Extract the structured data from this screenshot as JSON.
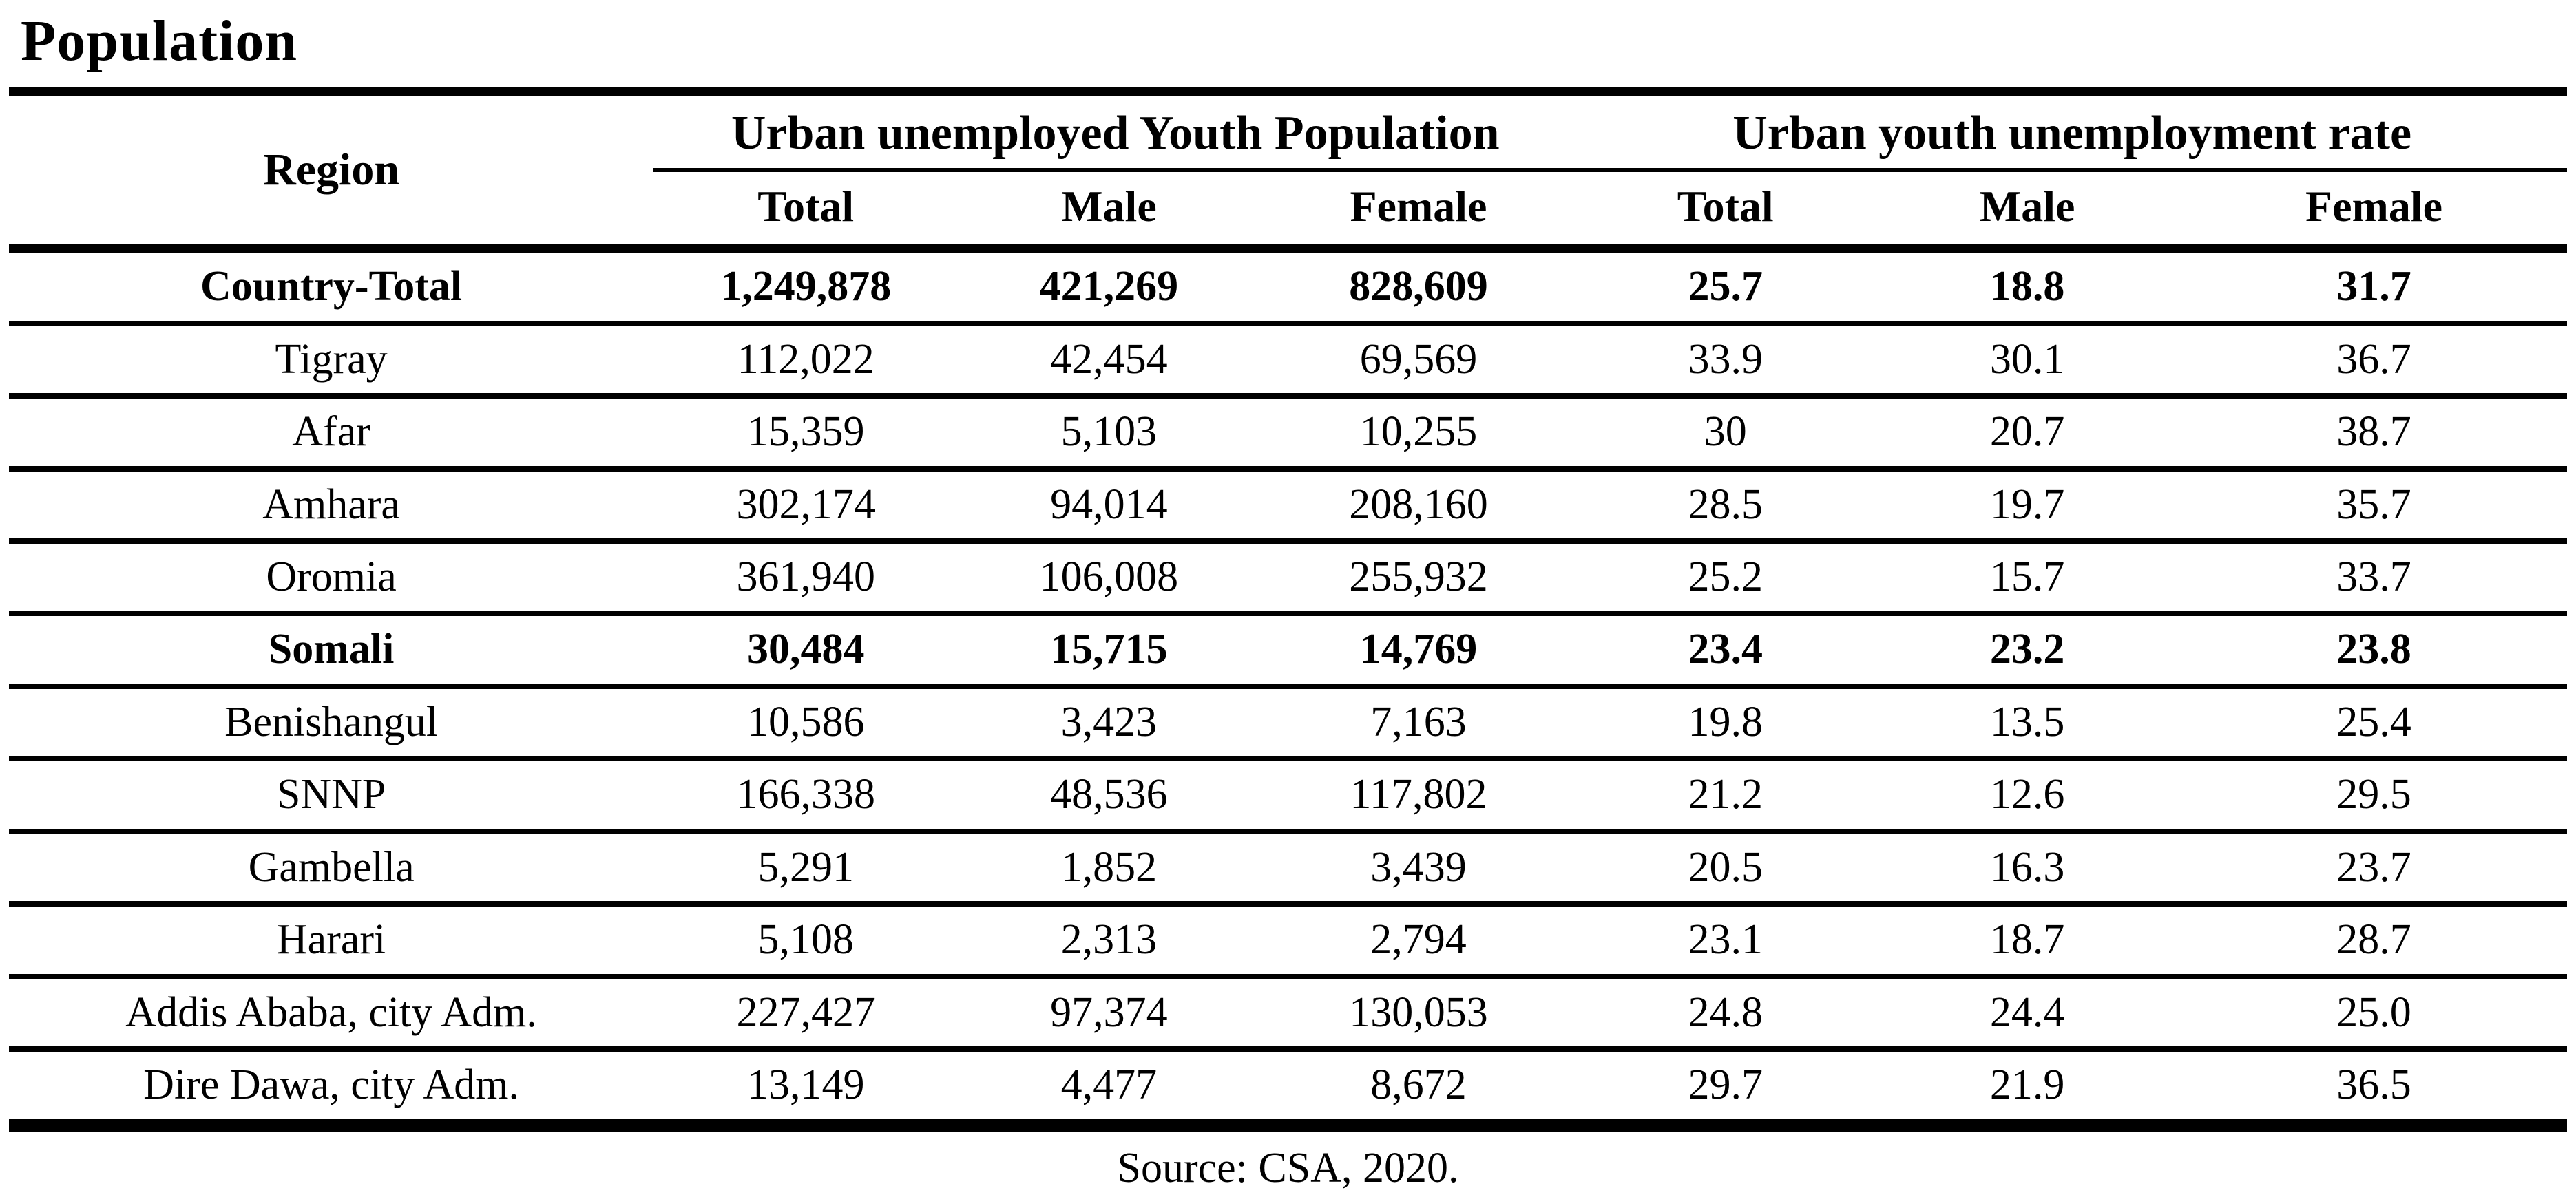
{
  "title": "Population",
  "colors": {
    "text": "#000000",
    "background": "#ffffff"
  },
  "table": {
    "region_header": "Region",
    "groups": [
      {
        "label": "Urban unemployed Youth Population",
        "columns": [
          "Total",
          "Male",
          "Female"
        ]
      },
      {
        "label": "Urban youth unemployment rate",
        "columns": [
          "Total",
          "Male",
          "Female"
        ]
      }
    ],
    "rows": [
      {
        "region": "Country-Total",
        "bold": true,
        "values": [
          "1,249,878",
          "421,269",
          "828,609",
          "25.7",
          "18.8",
          "31.7"
        ]
      },
      {
        "region": "Tigray",
        "bold": false,
        "values": [
          "112,022",
          "42,454",
          "69,569",
          "33.9",
          "30.1",
          "36.7"
        ]
      },
      {
        "region": "Afar",
        "bold": false,
        "values": [
          "15,359",
          "5,103",
          "10,255",
          "30",
          "20.7",
          "38.7"
        ]
      },
      {
        "region": "Amhara",
        "bold": false,
        "values": [
          "302,174",
          "94,014",
          "208,160",
          "28.5",
          "19.7",
          "35.7"
        ]
      },
      {
        "region": "Oromia",
        "bold": false,
        "values": [
          "361,940",
          "106,008",
          "255,932",
          "25.2",
          "15.7",
          "33.7"
        ]
      },
      {
        "region": "Somali",
        "bold": true,
        "values": [
          "30,484",
          "15,715",
          "14,769",
          "23.4",
          "23.2",
          "23.8"
        ]
      },
      {
        "region": "Benishangul",
        "bold": false,
        "values": [
          "10,586",
          "3,423",
          "7,163",
          "19.8",
          "13.5",
          "25.4"
        ]
      },
      {
        "region": "SNNP",
        "bold": false,
        "values": [
          "166,338",
          "48,536",
          "117,802",
          "21.2",
          "12.6",
          "29.5"
        ]
      },
      {
        "region": "Gambella",
        "bold": false,
        "values": [
          "5,291",
          "1,852",
          "3,439",
          "20.5",
          "16.3",
          "23.7"
        ]
      },
      {
        "region": "Harari",
        "bold": false,
        "values": [
          "5,108",
          "2,313",
          "2,794",
          "23.1",
          "18.7",
          "28.7"
        ]
      },
      {
        "region": "Addis Ababa, city Adm.",
        "bold": false,
        "values": [
          "227,427",
          "97,374",
          "130,053",
          "24.8",
          "24.4",
          "25.0"
        ]
      },
      {
        "region": "Dire Dawa, city Adm.",
        "bold": false,
        "values": [
          "13,149",
          "4,477",
          "8,672",
          "29.7",
          "21.9",
          "36.5"
        ]
      }
    ],
    "source": "Source: CSA, 2020."
  }
}
